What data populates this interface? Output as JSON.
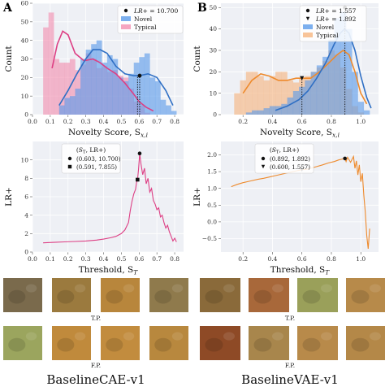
{
  "panel_labels": [
    "A",
    "B"
  ],
  "chart_data": [
    {
      "id": "A-hist",
      "type": "histogram",
      "xlabel": "Novelty Score, S",
      "xlabel_sub": "x,i",
      "ylabel": "Count",
      "xlim": [
        0.0,
        0.85
      ],
      "ylim": [
        0,
        60
      ],
      "xticks": [
        "0.0",
        "0.1",
        "0.2",
        "0.3",
        "0.4",
        "0.5",
        "0.6",
        "0.7",
        "0.8"
      ],
      "yticks": [
        "0",
        "10",
        "20",
        "30",
        "40",
        "50",
        "60"
      ],
      "legend": [
        {
          "type": "marker",
          "prefix": "LR+",
          "text": " = 10.700"
        },
        {
          "type": "patch",
          "name": "Novel",
          "color": "#5b9bea"
        },
        {
          "type": "patch",
          "name": "Typical",
          "color": "#f28fb0"
        }
      ],
      "bin_start": 0.06,
      "bin_width": 0.03,
      "series": [
        {
          "name": "Typical",
          "color": "#f28fb0",
          "counts": [
            47,
            55,
            30,
            28,
            28,
            30,
            24,
            27,
            33,
            30,
            25,
            26,
            23,
            24,
            21,
            20,
            14,
            7,
            5,
            1
          ]
        },
        {
          "name": "Novel",
          "color": "#5b9bea",
          "counts": [
            0,
            0,
            0,
            5,
            9,
            10,
            14,
            30,
            35,
            38,
            40,
            28,
            32,
            30,
            20,
            18,
            22,
            28,
            31,
            33,
            20,
            18,
            8,
            5,
            2
          ]
        }
      ],
      "kde": [
        {
          "name": "Typical",
          "color": "#dd3f84",
          "points": [
            [
              0.11,
              25
            ],
            [
              0.14,
              38
            ],
            [
              0.17,
              45
            ],
            [
              0.2,
              43
            ],
            [
              0.24,
              33
            ],
            [
              0.29,
              29
            ],
            [
              0.34,
              30
            ],
            [
              0.38,
              28
            ],
            [
              0.42,
              25
            ],
            [
              0.47,
              22
            ],
            [
              0.52,
              17
            ],
            [
              0.57,
              11
            ],
            [
              0.6,
              7
            ],
            [
              0.64,
              4
            ],
            [
              0.68,
              2
            ]
          ]
        },
        {
          "name": "Novel",
          "color": "#2f6fc4",
          "points": [
            [
              0.15,
              5
            ],
            [
              0.2,
              13
            ],
            [
              0.25,
              22
            ],
            [
              0.3,
              30
            ],
            [
              0.34,
              35
            ],
            [
              0.38,
              35
            ],
            [
              0.42,
              33
            ],
            [
              0.47,
              26
            ],
            [
              0.52,
              22
            ],
            [
              0.57,
              21
            ],
            [
              0.6,
              21
            ],
            [
              0.65,
              22
            ],
            [
              0.7,
              20
            ],
            [
              0.75,
              13
            ],
            [
              0.79,
              5
            ]
          ]
        }
      ],
      "threshold": {
        "x": 0.603,
        "y": 21
      },
      "threshold_lines": [
        0.603,
        0.591
      ]
    },
    {
      "id": "B-hist",
      "type": "histogram",
      "xlabel": "Novelty Score, S",
      "xlabel_sub": "x,i",
      "ylabel": "Count",
      "xlim": [
        0.05,
        1.12
      ],
      "ylim": [
        0,
        52
      ],
      "xticks": [
        "0.2",
        "0.4",
        "0.6",
        "0.8",
        "1.0"
      ],
      "yticks": [
        "0",
        "10",
        "20",
        "30",
        "40",
        "50"
      ],
      "legend": [
        {
          "type": "marker",
          "shape": "circle",
          "prefix": "LR+",
          "text": " = 1.557"
        },
        {
          "type": "marker",
          "shape": "triangle",
          "prefix": "LR+",
          "text": " = 1.892"
        },
        {
          "type": "patch",
          "name": "Novel",
          "color": "#5b9bea"
        },
        {
          "type": "patch",
          "name": "Typical",
          "color": "#f6b580"
        }
      ],
      "bin_start": 0.14,
      "bin_width": 0.04,
      "series": [
        {
          "name": "Typical",
          "color": "#f6b580",
          "counts": [
            10,
            16,
            20,
            20,
            18,
            16,
            18,
            20,
            20,
            16,
            15,
            17,
            18,
            20,
            22,
            25,
            30,
            28,
            22,
            12,
            4,
            1
          ]
        },
        {
          "name": "Novel",
          "color": "#5b9bea",
          "counts": [
            0,
            0,
            1,
            2,
            2,
            3,
            4,
            4,
            5,
            8,
            11,
            13,
            16,
            20,
            23,
            27,
            35,
            45,
            48,
            40,
            20,
            6,
            2
          ]
        }
      ],
      "kde": [
        {
          "name": "Typical",
          "color": "#ee8a2c",
          "points": [
            [
              0.2,
              10
            ],
            [
              0.26,
              16
            ],
            [
              0.32,
              19
            ],
            [
              0.38,
              18
            ],
            [
              0.44,
              16
            ],
            [
              0.5,
              16
            ],
            [
              0.56,
              17
            ],
            [
              0.6,
              17
            ],
            [
              0.66,
              17
            ],
            [
              0.72,
              20
            ],
            [
              0.78,
              24
            ],
            [
              0.84,
              28
            ],
            [
              0.88,
              30
            ],
            [
              0.92,
              28
            ],
            [
              0.96,
              20
            ],
            [
              1.0,
              10
            ],
            [
              1.04,
              5
            ]
          ]
        },
        {
          "name": "Novel",
          "color": "#2f6fc4",
          "points": [
            [
              0.42,
              2
            ],
            [
              0.5,
              4
            ],
            [
              0.58,
              7
            ],
            [
              0.64,
              11
            ],
            [
              0.7,
              17
            ],
            [
              0.76,
              24
            ],
            [
              0.82,
              33
            ],
            [
              0.86,
              38
            ],
            [
              0.89,
              40
            ],
            [
              0.92,
              38
            ],
            [
              0.96,
              30
            ],
            [
              1.0,
              18
            ],
            [
              1.04,
              8
            ],
            [
              1.07,
              3
            ]
          ]
        }
      ],
      "threshold": {
        "x": 0.892,
        "y": 50
      },
      "threshold2": {
        "x": 0.6,
        "y": 17
      },
      "threshold_lines": [
        0.892,
        0.6
      ]
    },
    {
      "id": "A-lr",
      "type": "line",
      "xlabel": "Threshold, S",
      "xlabel_sub": "T",
      "ylabel": "LR+",
      "xlim": [
        0.0,
        0.85
      ],
      "ylim": [
        0,
        12
      ],
      "xticks": [
        "0.0",
        "0.1",
        "0.2",
        "0.3",
        "0.4",
        "0.5",
        "0.6",
        "0.7",
        "0.8"
      ],
      "yticks": [
        "0",
        "2",
        "4",
        "6",
        "8",
        "10"
      ],
      "color": "#dd3f84",
      "legend_title_main": "S",
      "legend_title_sub": "T",
      "legend_title_tail": ", LR+)",
      "legend": [
        {
          "shape": "circle",
          "label": "(0.603, 10.700)"
        },
        {
          "shape": "square",
          "label": "(0.591, 7.855)"
        }
      ],
      "points": [
        [
          0.06,
          1.0
        ],
        [
          0.12,
          1.05
        ],
        [
          0.18,
          1.1
        ],
        [
          0.24,
          1.15
        ],
        [
          0.3,
          1.2
        ],
        [
          0.36,
          1.3
        ],
        [
          0.4,
          1.4
        ],
        [
          0.44,
          1.55
        ],
        [
          0.47,
          1.7
        ],
        [
          0.5,
          2.0
        ],
        [
          0.52,
          2.4
        ],
        [
          0.54,
          3.2
        ],
        [
          0.55,
          4.5
        ],
        [
          0.56,
          5.5
        ],
        [
          0.57,
          6.3
        ],
        [
          0.58,
          6.8
        ],
        [
          0.585,
          7.5
        ],
        [
          0.591,
          7.855
        ],
        [
          0.597,
          9.0
        ],
        [
          0.603,
          10.7
        ],
        [
          0.61,
          9.6
        ],
        [
          0.62,
          8.4
        ],
        [
          0.63,
          9.1
        ],
        [
          0.64,
          7.4
        ],
        [
          0.65,
          8.0
        ],
        [
          0.66,
          6.5
        ],
        [
          0.67,
          6.9
        ],
        [
          0.68,
          5.6
        ],
        [
          0.69,
          5.2
        ],
        [
          0.7,
          4.6
        ],
        [
          0.71,
          4.8
        ],
        [
          0.72,
          3.8
        ],
        [
          0.73,
          4.0
        ],
        [
          0.74,
          3.2
        ],
        [
          0.75,
          2.6
        ],
        [
          0.76,
          2.9
        ],
        [
          0.77,
          2.2
        ],
        [
          0.78,
          1.7
        ],
        [
          0.79,
          1.2
        ],
        [
          0.8,
          1.5
        ],
        [
          0.81,
          1.1
        ]
      ],
      "markers": [
        {
          "shape": "circle",
          "x": 0.603,
          "y": 10.7
        },
        {
          "shape": "square",
          "x": 0.591,
          "y": 7.855
        }
      ]
    },
    {
      "id": "B-lr",
      "type": "line",
      "xlabel": "Threshold, S",
      "xlabel_sub": "T",
      "ylabel": "LR+",
      "xlim": [
        0.05,
        1.12
      ],
      "ylim": [
        -0.9,
        2.4
      ],
      "xticks": [
        "0.2",
        "0.4",
        "0.6",
        "0.8",
        "1.0"
      ],
      "yticks": [
        "−0.5",
        "0.0",
        "0.5",
        "1.0",
        "1.5",
        "2.0"
      ],
      "color": "#ee8a2c",
      "legend_title_main": "S",
      "legend_title_sub": "T",
      "legend_title_tail": ", LR+)",
      "legend": [
        {
          "shape": "circle",
          "label": "(0.892, 1.892)"
        },
        {
          "shape": "triangle",
          "label": "(0.600, 1.557)"
        }
      ],
      "points": [
        [
          0.12,
          1.05
        ],
        [
          0.16,
          1.12
        ],
        [
          0.2,
          1.17
        ],
        [
          0.25,
          1.22
        ],
        [
          0.3,
          1.27
        ],
        [
          0.34,
          1.3
        ],
        [
          0.38,
          1.34
        ],
        [
          0.42,
          1.38
        ],
        [
          0.46,
          1.42
        ],
        [
          0.5,
          1.46
        ],
        [
          0.54,
          1.5
        ],
        [
          0.58,
          1.54
        ],
        [
          0.6,
          1.557
        ],
        [
          0.63,
          1.57
        ],
        [
          0.66,
          1.6
        ],
        [
          0.7,
          1.65
        ],
        [
          0.74,
          1.7
        ],
        [
          0.78,
          1.76
        ],
        [
          0.82,
          1.8
        ],
        [
          0.85,
          1.85
        ],
        [
          0.88,
          1.88
        ],
        [
          0.892,
          1.892
        ],
        [
          0.9,
          1.8
        ],
        [
          0.91,
          1.93
        ],
        [
          0.93,
          1.78
        ],
        [
          0.95,
          1.95
        ],
        [
          0.96,
          1.6
        ],
        [
          0.97,
          1.82
        ],
        [
          0.98,
          1.4
        ],
        [
          0.99,
          1.7
        ],
        [
          1.0,
          1.2
        ],
        [
          1.01,
          1.45
        ],
        [
          1.02,
          0.8
        ],
        [
          1.03,
          0.3
        ],
        [
          1.04,
          -0.4
        ],
        [
          1.05,
          -0.8
        ],
        [
          1.06,
          -0.2
        ]
      ],
      "markers": [
        {
          "shape": "circle",
          "x": 0.892,
          "y": 1.892
        },
        {
          "shape": "triangle",
          "x": 0.6,
          "y": 1.557
        }
      ]
    }
  ],
  "thumbnails": {
    "tp_label": "T.P.",
    "fp_label": "F.P.",
    "left_caption": "BaselineCAE-v1",
    "right_caption": "BaselineVAE-v1",
    "left_tp": [
      "#7a6a4c",
      "#9b7a3e",
      "#b8863c",
      "#8f7a4c"
    ],
    "left_fp": [
      "#9ba55e",
      "#c08a3c",
      "#c28c3e",
      "#b8883e"
    ],
    "right_tp": [
      "#8a6a3a",
      "#a8683a",
      "#9aa05a",
      "#b78a4a"
    ],
    "right_fp": [
      "#8e4a26",
      "#a8864c",
      "#b88a4a",
      "#b48848"
    ]
  }
}
